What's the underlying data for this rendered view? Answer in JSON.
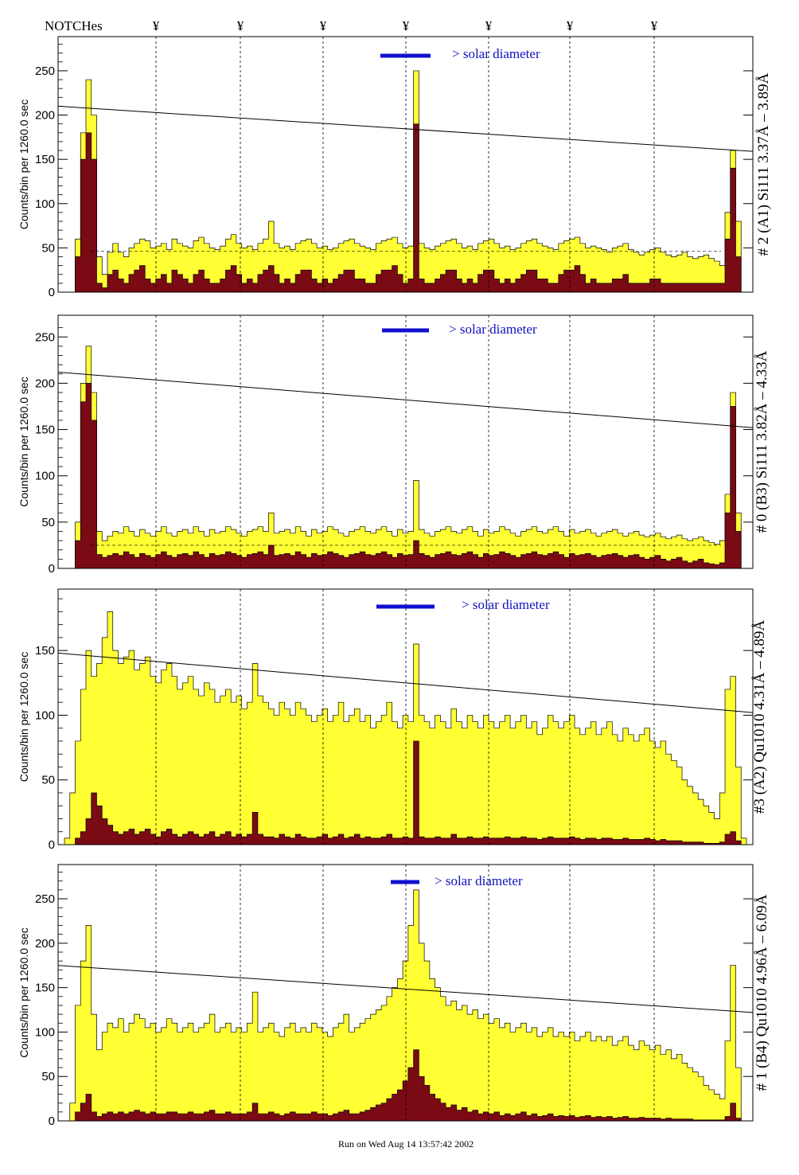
{
  "header": {
    "notches_label": "NOTCHes",
    "notch_symbol": "¥"
  },
  "footer": {
    "run_text": "Run on Wed Aug 14 13:57:42 2002"
  },
  "colors": {
    "fill_total": "#ffff33",
    "fill_lines": "#7a0a14",
    "solar_bar": "#1010d0",
    "axis": "#000000"
  },
  "chart_data": [
    {
      "type": "area",
      "title": "# 2 (A1) Si111  3.37Å – 3.89Å",
      "ylabel": "Counts/bin per   1260.0 sec",
      "solar_label": "> solar diameter",
      "ylim": [
        0,
        285
      ],
      "yticks": [
        0,
        50,
        100,
        150,
        200,
        250
      ],
      "peak_x": [
        0.02,
        0.5,
        0.985
      ],
      "trend_line": [
        210,
        159
      ],
      "mean_level": 46,
      "series": [
        {
          "name": "total",
          "values": [
            0,
            0,
            60,
            180,
            240,
            200,
            40,
            20,
            45,
            55,
            45,
            40,
            50,
            55,
            60,
            58,
            50,
            52,
            55,
            48,
            60,
            55,
            52,
            50,
            58,
            62,
            55,
            50,
            48,
            52,
            60,
            65,
            55,
            50,
            52,
            48,
            55,
            60,
            80,
            55,
            50,
            52,
            48,
            55,
            58,
            60,
            55,
            50,
            52,
            48,
            50,
            55,
            58,
            60,
            55,
            52,
            50,
            48,
            55,
            58,
            60,
            62,
            55,
            50,
            52,
            250,
            55,
            50,
            48,
            52,
            55,
            58,
            60,
            55,
            50,
            52,
            48,
            55,
            58,
            60,
            55,
            50,
            52,
            48,
            50,
            55,
            58,
            60,
            55,
            52,
            50,
            48,
            55,
            58,
            60,
            62,
            55,
            50,
            52,
            50,
            48,
            45,
            50,
            52,
            55,
            48,
            45,
            42,
            45,
            48,
            50,
            45,
            42,
            40,
            42,
            45,
            40,
            38,
            40,
            42,
            38,
            35,
            30,
            90,
            160,
            80,
            0
          ]
        },
        {
          "name": "lines",
          "values": [
            0,
            0,
            40,
            150,
            180,
            150,
            10,
            5,
            20,
            25,
            15,
            10,
            20,
            25,
            30,
            15,
            10,
            15,
            20,
            10,
            25,
            20,
            15,
            10,
            20,
            25,
            15,
            10,
            10,
            15,
            25,
            30,
            20,
            10,
            15,
            10,
            20,
            25,
            30,
            20,
            10,
            15,
            10,
            20,
            25,
            25,
            15,
            10,
            15,
            10,
            15,
            20,
            25,
            25,
            15,
            15,
            10,
            10,
            20,
            25,
            25,
            30,
            20,
            10,
            15,
            190,
            15,
            10,
            10,
            15,
            20,
            25,
            25,
            15,
            10,
            15,
            10,
            20,
            25,
            25,
            15,
            10,
            15,
            10,
            15,
            20,
            25,
            25,
            15,
            15,
            10,
            10,
            20,
            25,
            25,
            30,
            20,
            10,
            15,
            10,
            10,
            10,
            15,
            15,
            20,
            10,
            10,
            10,
            10,
            15,
            15,
            10,
            10,
            10,
            10,
            10,
            10,
            10,
            10,
            10,
            10,
            10,
            10,
            60,
            140,
            40,
            0
          ]
        }
      ]
    },
    {
      "type": "area",
      "title": "# 0 (B3) Si111  3.82Å – 4.33Å",
      "ylabel": "Counts/bin per   1260.0 sec",
      "solar_label": "> solar diameter",
      "ylim": [
        0,
        270
      ],
      "yticks": [
        0,
        50,
        100,
        150,
        200,
        250
      ],
      "trend_line": [
        212,
        152
      ],
      "mean_level": 25,
      "series": [
        {
          "name": "total",
          "values": [
            0,
            0,
            50,
            200,
            240,
            190,
            40,
            30,
            35,
            40,
            38,
            45,
            40,
            35,
            42,
            38,
            35,
            40,
            45,
            38,
            35,
            40,
            42,
            38,
            45,
            40,
            35,
            42,
            38,
            40,
            45,
            42,
            38,
            35,
            40,
            42,
            45,
            40,
            60,
            38,
            40,
            42,
            38,
            45,
            40,
            35,
            42,
            38,
            40,
            45,
            42,
            38,
            35,
            40,
            42,
            45,
            40,
            38,
            42,
            45,
            40,
            35,
            42,
            38,
            40,
            95,
            42,
            38,
            35,
            40,
            42,
            45,
            40,
            38,
            42,
            45,
            40,
            35,
            42,
            38,
            40,
            45,
            42,
            38,
            35,
            40,
            42,
            45,
            40,
            38,
            42,
            45,
            40,
            35,
            42,
            38,
            40,
            42,
            38,
            35,
            38,
            40,
            42,
            38,
            35,
            38,
            40,
            36,
            34,
            36,
            38,
            34,
            32,
            34,
            36,
            32,
            30,
            32,
            34,
            30,
            28,
            26,
            30,
            80,
            190,
            60,
            0
          ]
        },
        {
          "name": "lines",
          "values": [
            0,
            0,
            30,
            180,
            200,
            160,
            15,
            12,
            14,
            16,
            14,
            18,
            15,
            12,
            16,
            14,
            12,
            15,
            18,
            14,
            12,
            15,
            16,
            14,
            18,
            15,
            12,
            16,
            14,
            15,
            18,
            16,
            14,
            12,
            15,
            16,
            18,
            15,
            25,
            14,
            15,
            16,
            14,
            18,
            15,
            12,
            16,
            14,
            15,
            18,
            16,
            14,
            12,
            15,
            16,
            18,
            15,
            14,
            16,
            18,
            15,
            12,
            16,
            14,
            15,
            30,
            16,
            14,
            12,
            15,
            16,
            18,
            15,
            14,
            16,
            18,
            15,
            12,
            16,
            14,
            15,
            18,
            16,
            14,
            12,
            15,
            16,
            18,
            15,
            14,
            16,
            18,
            15,
            12,
            16,
            14,
            15,
            16,
            14,
            12,
            14,
            15,
            16,
            14,
            12,
            14,
            15,
            12,
            10,
            12,
            14,
            10,
            8,
            10,
            12,
            8,
            6,
            8,
            10,
            6,
            5,
            4,
            6,
            60,
            175,
            40,
            0
          ]
        }
      ]
    },
    {
      "type": "area",
      "title": "#3 (A2) Qu1010  4.31Å – 4.89Å",
      "ylabel": "Counts/bin per   1260.0 sec",
      "solar_label": "> solar diameter",
      "ylim": [
        0,
        195
      ],
      "yticks": [
        0,
        50,
        100,
        150
      ],
      "trend_line": [
        148,
        102
      ],
      "series": [
        {
          "name": "total",
          "values": [
            5,
            40,
            80,
            120,
            150,
            130,
            140,
            160,
            180,
            150,
            140,
            145,
            150,
            135,
            140,
            145,
            130,
            125,
            135,
            140,
            130,
            120,
            125,
            130,
            120,
            115,
            125,
            120,
            110,
            115,
            120,
            110,
            115,
            105,
            110,
            140,
            115,
            110,
            105,
            100,
            110,
            105,
            100,
            110,
            105,
            100,
            95,
            100,
            105,
            95,
            100,
            110,
            95,
            100,
            105,
            95,
            100,
            90,
            95,
            100,
            110,
            95,
            90,
            100,
            95,
            155,
            100,
            95,
            90,
            100,
            95,
            90,
            105,
            95,
            90,
            100,
            95,
            90,
            100,
            95,
            90,
            95,
            100,
            90,
            95,
            100,
            90,
            95,
            85,
            90,
            100,
            95,
            90,
            95,
            100,
            90,
            85,
            90,
            95,
            85,
            90,
            95,
            85,
            80,
            90,
            85,
            80,
            85,
            90,
            80,
            75,
            80,
            70,
            65,
            60,
            50,
            45,
            40,
            35,
            30,
            25,
            20,
            40,
            120,
            130,
            60,
            5
          ]
        },
        {
          "name": "lines",
          "values": [
            0,
            0,
            5,
            10,
            20,
            40,
            30,
            20,
            15,
            10,
            8,
            10,
            12,
            8,
            10,
            12,
            8,
            6,
            10,
            12,
            8,
            6,
            8,
            10,
            8,
            6,
            8,
            10,
            6,
            8,
            10,
            6,
            8,
            6,
            8,
            25,
            8,
            6,
            6,
            5,
            8,
            6,
            5,
            8,
            6,
            5,
            5,
            6,
            8,
            5,
            6,
            8,
            5,
            6,
            8,
            5,
            6,
            5,
            5,
            6,
            8,
            5,
            5,
            6,
            5,
            80,
            6,
            5,
            5,
            6,
            5,
            5,
            8,
            5,
            5,
            6,
            5,
            5,
            6,
            5,
            5,
            5,
            6,
            5,
            5,
            6,
            5,
            5,
            4,
            5,
            6,
            5,
            5,
            5,
            6,
            5,
            4,
            5,
            5,
            4,
            5,
            5,
            4,
            4,
            5,
            4,
            4,
            4,
            5,
            4,
            3,
            4,
            3,
            3,
            3,
            2,
            2,
            2,
            2,
            1,
            1,
            1,
            2,
            8,
            10,
            3,
            0
          ]
        }
      ]
    },
    {
      "type": "area",
      "title": "# 1 (B4) Qu1010 4.96Å – 6.09Å",
      "ylabel": "Counts/bin per   1260.0 sec",
      "solar_label": "> solar diameter",
      "ylim": [
        0,
        285
      ],
      "yticks": [
        0,
        50,
        100,
        150,
        200,
        250
      ],
      "trend_line": [
        175,
        122
      ],
      "series": [
        {
          "name": "total",
          "values": [
            0,
            20,
            130,
            180,
            220,
            120,
            80,
            100,
            110,
            105,
            115,
            100,
            110,
            120,
            115,
            105,
            110,
            100,
            105,
            115,
            110,
            100,
            105,
            110,
            100,
            105,
            110,
            120,
            100,
            105,
            110,
            100,
            105,
            100,
            110,
            145,
            100,
            105,
            110,
            100,
            95,
            105,
            110,
            100,
            105,
            100,
            110,
            105,
            100,
            95,
            105,
            110,
            120,
            100,
            105,
            110,
            115,
            120,
            125,
            130,
            140,
            150,
            160,
            180,
            220,
            260,
            200,
            180,
            160,
            150,
            140,
            130,
            135,
            125,
            130,
            120,
            125,
            115,
            120,
            110,
            115,
            105,
            110,
            100,
            105,
            110,
            100,
            105,
            95,
            100,
            105,
            95,
            100,
            95,
            100,
            90,
            95,
            100,
            90,
            95,
            90,
            95,
            85,
            90,
            95,
            85,
            80,
            90,
            85,
            80,
            85,
            75,
            80,
            70,
            75,
            65,
            60,
            55,
            50,
            40,
            35,
            30,
            25,
            90,
            175,
            60,
            0
          ]
        },
        {
          "name": "lines",
          "values": [
            0,
            0,
            10,
            20,
            30,
            10,
            5,
            8,
            10,
            8,
            10,
            8,
            10,
            12,
            10,
            8,
            10,
            8,
            8,
            10,
            10,
            8,
            8,
            10,
            8,
            8,
            10,
            12,
            8,
            8,
            10,
            8,
            8,
            8,
            10,
            20,
            8,
            8,
            10,
            8,
            6,
            8,
            10,
            8,
            8,
            8,
            10,
            8,
            8,
            6,
            8,
            10,
            12,
            8,
            8,
            10,
            12,
            15,
            18,
            20,
            25,
            30,
            35,
            45,
            60,
            80,
            50,
            40,
            30,
            25,
            20,
            15,
            18,
            12,
            15,
            10,
            12,
            8,
            10,
            8,
            10,
            6,
            8,
            6,
            8,
            10,
            6,
            8,
            5,
            6,
            8,
            5,
            6,
            5,
            6,
            4,
            5,
            6,
            4,
            5,
            4,
            5,
            3,
            4,
            5,
            3,
            3,
            4,
            3,
            3,
            3,
            2,
            3,
            2,
            2,
            2,
            2,
            1,
            1,
            1,
            1,
            1,
            1,
            5,
            20,
            3,
            0
          ]
        }
      ]
    }
  ]
}
